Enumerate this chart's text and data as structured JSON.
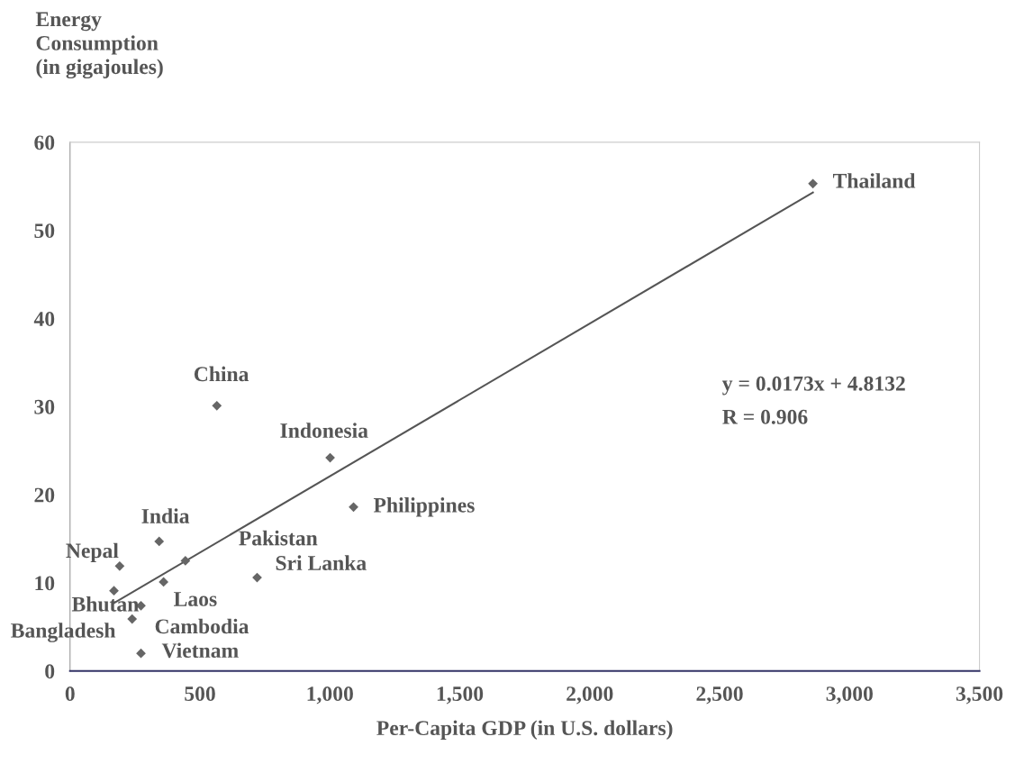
{
  "chart_data": {
    "type": "scatter",
    "xlabel": "Per-Capita GDP (in U.S. dollars)",
    "ylabel": "Energy\nConsumption\n(in gigajoules)",
    "series": [
      {
        "color": "#666666",
        "marker": "diamond",
        "x": [
          2859,
          565,
          1001,
          1091,
          343,
          191,
          444,
          360,
          720,
          169,
          273,
          239,
          273
        ],
        "values": [
          55.3,
          30.1,
          24.2,
          18.6,
          14.7,
          11.9,
          12.5,
          10.1,
          10.6,
          9.1,
          7.4,
          5.9,
          2.0
        ]
      },
      {
        "type": "line",
        "color": "#555555",
        "marker": "none",
        "x": [
          169,
          2859
        ],
        "values": [
          7.7,
          54.3
        ]
      }
    ],
    "xlim": [
      0,
      3500
    ],
    "ylim": [
      0,
      60
    ],
    "xticks": [
      0,
      500,
      {
        "value": 1000,
        "label": "1,000"
      },
      {
        "value": 1500,
        "label": "1,500"
      },
      {
        "value": 2000,
        "label": "2,000"
      },
      {
        "value": 2500,
        "label": "2,500"
      },
      {
        "value": 3000,
        "label": "3,000"
      },
      {
        "value": 3500,
        "label": "3,500"
      }
    ],
    "yticks": [
      0,
      10,
      20,
      30,
      40,
      50,
      60
    ],
    "grid": false,
    "legend": false,
    "annotations": [
      {
        "text": "Thailand",
        "x": 2859,
        "y": 55.3
      },
      {
        "text": "China",
        "x": 565,
        "y": 30.1
      },
      {
        "text": "Indonesia",
        "x": 1001,
        "y": 24.2
      },
      {
        "text": "Philippines",
        "x": 1091,
        "y": 18.6
      },
      {
        "text": "India",
        "x": 343,
        "y": 14.7
      },
      {
        "text": "Nepal",
        "x": 191,
        "y": 11.9
      },
      {
        "text": "Pakistan",
        "x": 444,
        "y": 12.5
      },
      {
        "text": "Sri Lanka",
        "x": 720,
        "y": 10.6
      },
      {
        "text": "Laos",
        "x": 360,
        "y": 10.1
      },
      {
        "text": "Bhutan",
        "x": 169,
        "y": 9.1
      },
      {
        "text": "Bangladesh",
        "x": 239,
        "y": 5.9
      },
      {
        "text": "Cambodia",
        "x": 273,
        "y": 7.4
      },
      {
        "text": "Vietnam",
        "x": 273,
        "y": 2.0
      },
      "y = 0.0173x + 4.8132",
      "R = 0.906"
    ]
  }
}
